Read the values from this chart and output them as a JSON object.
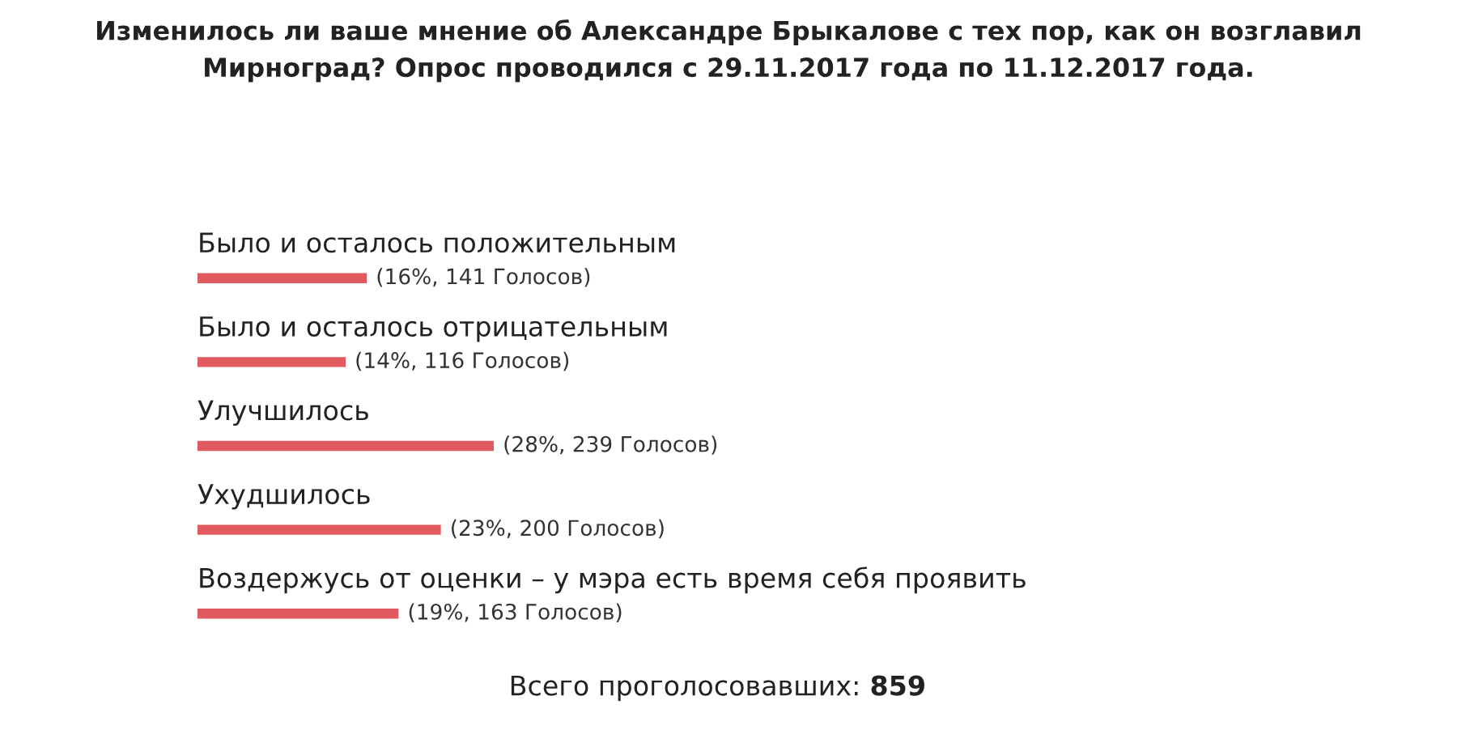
{
  "chart_data": {
    "type": "bar",
    "orientation": "horizontal",
    "title": "Изменилось ли ваше мнение об Александре Брыкалове с тех пор, как он возглавил Мирноград? Опрос проводился с 29.11.2017 года по 11.12.2017 года.",
    "categories": [
      "Было и осталось положительным",
      "Было и осталось отрицательным",
      "Улучшилось",
      "Ухудшилось",
      "Воздержусь от оценки – у мэра есть время себя проявить"
    ],
    "values": [
      16,
      14,
      28,
      23,
      19
    ],
    "value_labels": [
      "(16%, 141 Голосов)",
      "(14%, 116 Голосов)",
      "(28%, 239 Голосов)",
      "(23%, 200 Голосов)",
      "(19%, 163 Голосов)"
    ],
    "color": "#e05a5f",
    "annotations": [
      "Всего проголосовавших:",
      "859"
    ]
  }
}
